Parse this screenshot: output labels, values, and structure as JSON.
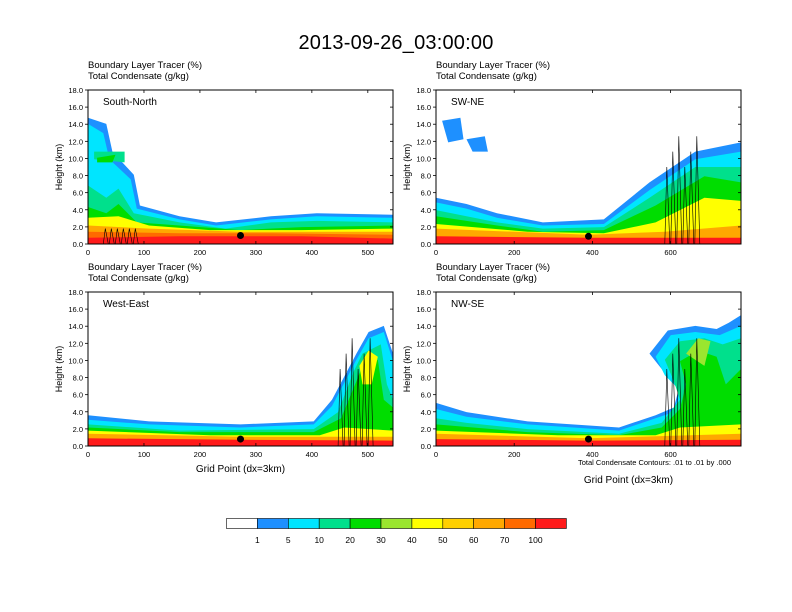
{
  "title": "2013-09-26_03:00:00",
  "panels": [
    {
      "label1": "Boundary Layer Tracer   (%)",
      "label2": "Total Condensate   (g/kg)",
      "section": "South-North",
      "ylabel": "Height (km)",
      "xlabel": "",
      "yticks": [
        "0.0",
        "2.0",
        "4.0",
        "6.0",
        "8.0",
        "10.0",
        "12.0",
        "14.0",
        "16.0",
        "18.0"
      ],
      "xmax": 545,
      "xticks": [
        0,
        100,
        200,
        300,
        400,
        500
      ]
    },
    {
      "label1": "Boundary Layer Tracer   (%)",
      "label2": "Total Condensate   (g/kg)",
      "section": "SW-NE",
      "ylabel": "Height (km)",
      "xlabel": "",
      "yticks": [
        "0.0",
        "2.0",
        "4.0",
        "6.0",
        "8.0",
        "10.0",
        "12.0",
        "14.0",
        "16.0",
        "18.0"
      ],
      "xmax": 780,
      "xticks": [
        0,
        200,
        400,
        600
      ]
    },
    {
      "label1": "Boundary Layer Tracer   (%)",
      "label2": "Total Condensate   (g/kg)",
      "section": "West-East",
      "ylabel": "Height (km)",
      "xlabel": "Grid Point (dx=3km)",
      "yticks": [
        "0.0",
        "2.0",
        "4.0",
        "6.0",
        "8.0",
        "10.0",
        "12.0",
        "14.0",
        "16.0",
        "18.0"
      ],
      "xmax": 545,
      "xticks": [
        0,
        100,
        200,
        300,
        400,
        500
      ]
    },
    {
      "label1": "Boundary Layer Tracer   (%)",
      "label2": "Total Condensate   (g/kg)",
      "section": "NW-SE",
      "ylabel": "Height (km)",
      "xlabel": "Grid Point (dx=3km)",
      "yticks": [
        "0.0",
        "2.0",
        "4.0",
        "6.0",
        "8.0",
        "10.0",
        "12.0",
        "14.0",
        "16.0",
        "18.0"
      ],
      "xmax": 780,
      "xticks": [
        0,
        200,
        400,
        600
      ]
    }
  ],
  "footnote": "Total Condensate Contours: .01 to .01 by .000",
  "colorbar": {
    "colors": [
      "#ffffff",
      "#1e90ff",
      "#00e5ff",
      "#00e08c",
      "#00dd00",
      "#9ae62f",
      "#ffff00",
      "#ffd000",
      "#ffa800",
      "#ff6a00",
      "#ff1a1a"
    ],
    "labels": [
      "1",
      "5",
      "10",
      "20",
      "30",
      "40",
      "50",
      "60",
      "70",
      "100"
    ]
  },
  "chart_data": {
    "type": "heatmap",
    "title": "2013-09-26_03:00:00",
    "fields": [
      "Boundary Layer Tracer (%)",
      "Total Condensate (g/kg)"
    ],
    "y_range": [
      0,
      18
    ],
    "contour_levels": [
      1,
      5,
      10,
      20,
      30,
      40,
      50,
      60,
      70,
      100
    ],
    "panels": [
      {
        "name": "South-North",
        "x_range": [
          0,
          545
        ]
      },
      {
        "name": "SW-NE",
        "x_range": [
          0,
          780
        ]
      },
      {
        "name": "West-East",
        "x_range": [
          0,
          545
        ]
      },
      {
        "name": "NW-SE",
        "x_range": [
          0,
          780
        ]
      }
    ]
  }
}
